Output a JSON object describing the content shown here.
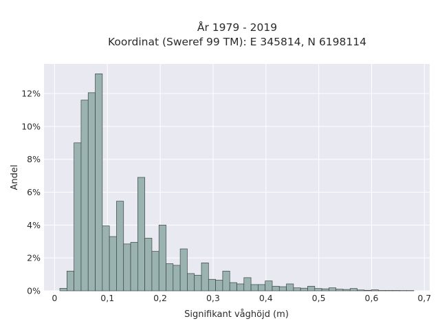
{
  "chart_data": {
    "type": "bar",
    "title_lines": [
      "År 1979 - 2019",
      "Koordinat (Sweref 99 TM): E 345814, N 6198114"
    ],
    "xlabel": "Signifikant våghöjd (m)",
    "ylabel": "Andel",
    "xlim": [
      -0.02,
      0.71
    ],
    "ylim": [
      0,
      13.8
    ],
    "x_ticks": [
      0,
      0.1,
      0.2,
      0.3,
      0.4,
      0.5,
      0.6,
      0.7
    ],
    "x_tick_labels": [
      "0",
      "0,1",
      "0,2",
      "0,3",
      "0,4",
      "0,5",
      "0,6",
      "0,7"
    ],
    "y_ticks": [
      0,
      2,
      4,
      6,
      8,
      10,
      12
    ],
    "y_tick_labels": [
      "0%",
      "2%",
      "4%",
      "6%",
      "8%",
      "10%",
      "12%"
    ],
    "bin_start": 0.01,
    "bin_width": 0.0134,
    "values": [
      0.15,
      1.2,
      9.0,
      11.6,
      12.05,
      13.2,
      3.95,
      3.3,
      5.45,
      2.85,
      2.95,
      6.9,
      3.2,
      2.4,
      4.0,
      1.65,
      1.55,
      2.55,
      1.05,
      0.95,
      1.7,
      0.7,
      0.65,
      1.2,
      0.5,
      0.42,
      0.8,
      0.38,
      0.38,
      0.6,
      0.28,
      0.25,
      0.42,
      0.18,
      0.16,
      0.28,
      0.14,
      0.12,
      0.18,
      0.1,
      0.08,
      0.14,
      0.05,
      0.03,
      0.06,
      0.02,
      0.02,
      0.02,
      0.01,
      0.01
    ],
    "grid": true,
    "colors": {
      "bar_fill": "#9ab3b1",
      "bar_edge": "#3a4442",
      "plot_bg": "#e9e9f1",
      "grid": "#ffffff"
    }
  }
}
